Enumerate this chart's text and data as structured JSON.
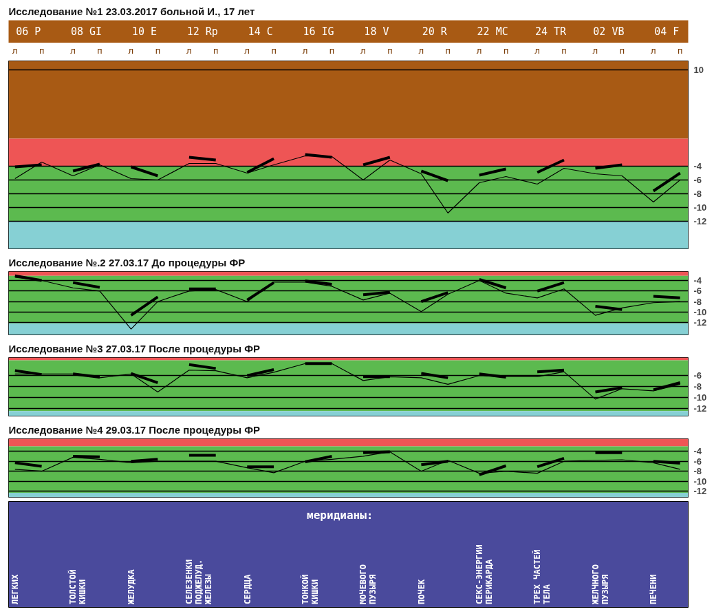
{
  "chart_data": [
    {
      "type": "line",
      "title": "Исследование №1 23.03.2017   больной И., 17 лет",
      "categories": [
        "л",
        "п",
        "л",
        "п",
        "л",
        "п",
        "л",
        "п",
        "л",
        "п",
        "л",
        "п",
        "л",
        "п",
        "л",
        "п",
        "л",
        "п",
        "л",
        "п",
        "л",
        "п",
        "л",
        "п"
      ],
      "annotations": [
        "06 P",
        "08 GI",
        "10 E",
        "12 Rp",
        "14 C",
        "16 IG",
        "18 V",
        "20 R",
        "22 MC",
        "24 TR",
        "02 VB",
        "04 F"
      ],
      "ylim": [
        -16,
        11.3
      ],
      "yticks": [
        10,
        -4,
        -6,
        -8,
        -10,
        -12
      ],
      "grid": "y",
      "bands": [
        {
          "axis": "y",
          "from": 0,
          "to": 11.3,
          "color": "#a85a14"
        },
        {
          "axis": "y",
          "from": -4,
          "to": 0,
          "color": "#ee5555"
        },
        {
          "axis": "y",
          "from": -12,
          "to": -4,
          "color": "#5cba4f"
        },
        {
          "axis": "y",
          "from": -16,
          "to": -12,
          "color": "#86d0d4"
        }
      ],
      "series": [
        {
          "color": "#000000",
          "values": [
            -5.8,
            -3.4,
            -5.4,
            -3.8,
            -5.8,
            -6.0,
            -3.6,
            -3.6,
            -5.0,
            -3.8,
            -2.5,
            -2.6,
            -6.0,
            -3.1,
            -5.1,
            -10.8,
            -6.4,
            -5.5,
            -6.6,
            -4.3,
            -5.1,
            -5.4,
            -9.2,
            -6.0
          ]
        },
        {
          "color": "#000000",
          "values": [
            -4.1,
            -3.8,
            null,
            null,
            null,
            null,
            null,
            null,
            null,
            null,
            null,
            null,
            null,
            null,
            null,
            null,
            null,
            null,
            null,
            null,
            null,
            null,
            null,
            null
          ]
        },
        {
          "color": "#000000",
          "values": [
            null,
            null,
            -4.7,
            -3.7,
            null,
            null,
            null,
            null,
            null,
            null,
            null,
            null,
            null,
            null,
            null,
            null,
            null,
            null,
            null,
            null,
            null,
            null,
            null,
            null
          ]
        },
        {
          "color": "#000000",
          "values": [
            null,
            null,
            null,
            null,
            -4.1,
            -5.4,
            null,
            null,
            null,
            null,
            null,
            null,
            null,
            null,
            null,
            null,
            null,
            null,
            null,
            null,
            null,
            null,
            null,
            null
          ]
        },
        {
          "color": "#000000",
          "values": [
            null,
            null,
            null,
            null,
            null,
            null,
            -2.7,
            -3.1,
            null,
            null,
            null,
            null,
            null,
            null,
            null,
            null,
            null,
            null,
            null,
            null,
            null,
            null,
            null,
            null
          ]
        },
        {
          "color": "#000000",
          "values": [
            null,
            null,
            null,
            null,
            null,
            null,
            null,
            null,
            -4.9,
            -2.9,
            null,
            null,
            null,
            null,
            null,
            null,
            null,
            null,
            null,
            null,
            null,
            null,
            null,
            null
          ]
        },
        {
          "color": "#000000",
          "values": [
            null,
            null,
            null,
            null,
            null,
            null,
            null,
            null,
            null,
            null,
            -2.3,
            -2.7,
            null,
            null,
            null,
            null,
            null,
            null,
            null,
            null,
            null,
            null,
            null,
            null
          ]
        },
        {
          "color": "#000000",
          "values": [
            null,
            null,
            null,
            null,
            null,
            null,
            null,
            null,
            null,
            null,
            null,
            null,
            -3.8,
            -2.7,
            null,
            null,
            null,
            null,
            null,
            null,
            null,
            null,
            null,
            null
          ]
        },
        {
          "color": "#000000",
          "values": [
            null,
            null,
            null,
            null,
            null,
            null,
            null,
            null,
            null,
            null,
            null,
            null,
            null,
            null,
            -4.7,
            -6.1,
            null,
            null,
            null,
            null,
            null,
            null,
            null,
            null
          ]
        },
        {
          "color": "#000000",
          "values": [
            null,
            null,
            null,
            null,
            null,
            null,
            null,
            null,
            null,
            null,
            null,
            null,
            null,
            null,
            null,
            null,
            -5.3,
            -4.4,
            null,
            null,
            null,
            null,
            null,
            null
          ]
        },
        {
          "color": "#000000",
          "values": [
            null,
            null,
            null,
            null,
            null,
            null,
            null,
            null,
            null,
            null,
            null,
            null,
            null,
            null,
            null,
            null,
            null,
            null,
            -4.9,
            -3.1,
            null,
            null,
            null,
            null
          ]
        },
        {
          "color": "#000000",
          "values": [
            null,
            null,
            null,
            null,
            null,
            null,
            null,
            null,
            null,
            null,
            null,
            null,
            null,
            null,
            null,
            null,
            null,
            null,
            null,
            null,
            -4.3,
            -3.8,
            null,
            null
          ]
        },
        {
          "color": "#000000",
          "values": [
            null,
            null,
            null,
            null,
            null,
            null,
            null,
            null,
            null,
            null,
            null,
            null,
            null,
            null,
            null,
            null,
            null,
            null,
            null,
            null,
            null,
            null,
            -7.6,
            -5.0
          ]
        }
      ]
    },
    {
      "type": "line",
      "title": "Исследование №.2 27.03.17    До процедуры ФР",
      "categories": [
        null,
        null,
        null,
        null,
        null,
        null,
        null,
        null,
        null,
        null,
        null,
        null,
        null,
        null,
        null,
        null,
        null,
        null,
        null,
        null,
        null,
        null,
        null,
        null
      ],
      "tick_labels": "y",
      "ylim": [
        -14.3,
        -2.3
      ],
      "yticks": [
        -4,
        -6,
        -8,
        -10,
        -12
      ],
      "grid": "y",
      "bands": [
        {
          "axis": "y",
          "from": -3.1,
          "to": -2.3,
          "color": "#ee5555"
        },
        {
          "axis": "y",
          "from": -12.1,
          "to": -3.1,
          "color": "#5cba4f"
        },
        {
          "axis": "y",
          "from": -14.3,
          "to": -12.1,
          "color": "#86d0d4"
        }
      ],
      "series": [
        {
          "color": "#000000",
          "values": [
            -3.4,
            -4.0,
            -5.4,
            -6.0,
            -13.2,
            -8.0,
            -6.0,
            -5.7,
            -8.0,
            -4.3,
            -4.3,
            -5.1,
            -7.7,
            -6.4,
            -9.9,
            -6.6,
            -4.0,
            -6.4,
            -7.3,
            -5.6,
            -10.6,
            -9.2,
            -8.2,
            -8.0
          ]
        },
        {
          "color": "#000000",
          "values": [
            -3.1,
            -4.0,
            null,
            null,
            null,
            null,
            null,
            null,
            null,
            null,
            null,
            null,
            null,
            null,
            null,
            null,
            null,
            null,
            null,
            null,
            null,
            null,
            null,
            null
          ]
        },
        {
          "color": "#000000",
          "values": [
            null,
            null,
            -4.4,
            -5.3,
            null,
            null,
            null,
            null,
            null,
            null,
            null,
            null,
            null,
            null,
            null,
            null,
            null,
            null,
            null,
            null,
            null,
            null,
            null,
            null
          ]
        },
        {
          "color": "#000000",
          "values": [
            null,
            null,
            null,
            null,
            -10.6,
            -7.1,
            null,
            null,
            null,
            null,
            null,
            null,
            null,
            null,
            null,
            null,
            null,
            null,
            null,
            null,
            null,
            null,
            null,
            null
          ]
        },
        {
          "color": "#000000",
          "values": [
            null,
            null,
            null,
            null,
            null,
            null,
            -5.6,
            -5.6,
            null,
            null,
            null,
            null,
            null,
            null,
            null,
            null,
            null,
            null,
            null,
            null,
            null,
            null,
            null,
            null
          ]
        },
        {
          "color": "#000000",
          "values": [
            null,
            null,
            null,
            null,
            null,
            null,
            null,
            null,
            -7.7,
            -4.4,
            null,
            null,
            null,
            null,
            null,
            null,
            null,
            null,
            null,
            null,
            null,
            null,
            null,
            null
          ]
        },
        {
          "color": "#000000",
          "values": [
            null,
            null,
            null,
            null,
            null,
            null,
            null,
            null,
            null,
            null,
            -4.1,
            -4.7,
            null,
            null,
            null,
            null,
            null,
            null,
            null,
            null,
            null,
            null,
            null,
            null
          ]
        },
        {
          "color": "#000000",
          "values": [
            null,
            null,
            null,
            null,
            null,
            null,
            null,
            null,
            null,
            null,
            null,
            null,
            -6.7,
            -6.2,
            null,
            null,
            null,
            null,
            null,
            null,
            null,
            null,
            null,
            null
          ]
        },
        {
          "color": "#000000",
          "values": [
            null,
            null,
            null,
            null,
            null,
            null,
            null,
            null,
            null,
            null,
            null,
            null,
            null,
            null,
            -8.0,
            -6.3,
            null,
            null,
            null,
            null,
            null,
            null,
            null,
            null
          ]
        },
        {
          "color": "#000000",
          "values": [
            null,
            null,
            null,
            null,
            null,
            null,
            null,
            null,
            null,
            null,
            null,
            null,
            null,
            null,
            null,
            null,
            -3.8,
            -5.4,
            null,
            null,
            null,
            null,
            null,
            null
          ]
        },
        {
          "color": "#000000",
          "values": [
            null,
            null,
            null,
            null,
            null,
            null,
            null,
            null,
            null,
            null,
            null,
            null,
            null,
            null,
            null,
            null,
            null,
            null,
            -6.0,
            -4.4,
            null,
            null,
            null,
            null
          ]
        },
        {
          "color": "#000000",
          "values": [
            null,
            null,
            null,
            null,
            null,
            null,
            null,
            null,
            null,
            null,
            null,
            null,
            null,
            null,
            null,
            null,
            null,
            null,
            null,
            null,
            -8.9,
            -9.5,
            null,
            null
          ]
        },
        {
          "color": "#000000",
          "values": [
            null,
            null,
            null,
            null,
            null,
            null,
            null,
            null,
            null,
            null,
            null,
            null,
            null,
            null,
            null,
            null,
            null,
            null,
            null,
            null,
            null,
            null,
            -7.0,
            -7.3
          ]
        }
      ]
    },
    {
      "type": "line",
      "title": "Исследование №3 27.03.17    После процедуры ФР",
      "categories": [
        null,
        null,
        null,
        null,
        null,
        null,
        null,
        null,
        null,
        null,
        null,
        null,
        null,
        null,
        null,
        null,
        null,
        null,
        null,
        null,
        null,
        null,
        null,
        null
      ],
      "tick_labels": "y",
      "ylim": [
        -13.4,
        -2.7
      ],
      "yticks": [
        -6,
        -8,
        -10,
        -12
      ],
      "grid": "y",
      "bands": [
        {
          "axis": "y",
          "from": -3.2,
          "to": -2.7,
          "color": "#ee5555"
        },
        {
          "axis": "y",
          "from": -12.5,
          "to": -3.2,
          "color": "#5cba4f"
        },
        {
          "axis": "y",
          "from": -13.4,
          "to": -12.5,
          "color": "#86d0d4"
        }
      ],
      "series": [
        {
          "color": "#000000",
          "values": [
            -5.7,
            -5.7,
            -5.7,
            -6.4,
            -5.7,
            -9.0,
            -5.0,
            -5.1,
            -6.4,
            -5.4,
            -3.8,
            -3.8,
            -6.9,
            -6.2,
            -6.4,
            -7.6,
            -6.0,
            -6.2,
            -6.2,
            -5.3,
            -10.3,
            -8.4,
            -8.8,
            -7.6
          ]
        },
        {
          "color": "#000000",
          "values": [
            -5.1,
            -5.8,
            null,
            null,
            null,
            null,
            null,
            null,
            null,
            null,
            null,
            null,
            null,
            null,
            null,
            null,
            null,
            null,
            null,
            null,
            null,
            null,
            null,
            null
          ]
        },
        {
          "color": "#000000",
          "values": [
            null,
            null,
            -5.7,
            -6.3,
            null,
            null,
            null,
            null,
            null,
            null,
            null,
            null,
            null,
            null,
            null,
            null,
            null,
            null,
            null,
            null,
            null,
            null,
            null,
            null
          ]
        },
        {
          "color": "#000000",
          "values": [
            null,
            null,
            null,
            null,
            -5.6,
            -7.3,
            null,
            null,
            null,
            null,
            null,
            null,
            null,
            null,
            null,
            null,
            null,
            null,
            null,
            null,
            null,
            null,
            null,
            null
          ]
        },
        {
          "color": "#000000",
          "values": [
            null,
            null,
            null,
            null,
            null,
            null,
            -4.0,
            -4.7,
            null,
            null,
            null,
            null,
            null,
            null,
            null,
            null,
            null,
            null,
            null,
            null,
            null,
            null,
            null,
            null
          ]
        },
        {
          "color": "#000000",
          "values": [
            null,
            null,
            null,
            null,
            null,
            null,
            null,
            null,
            -6.0,
            -4.9,
            null,
            null,
            null,
            null,
            null,
            null,
            null,
            null,
            null,
            null,
            null,
            null,
            null,
            null
          ]
        },
        {
          "color": "#000000",
          "values": [
            null,
            null,
            null,
            null,
            null,
            null,
            null,
            null,
            null,
            null,
            -3.8,
            -3.8,
            null,
            null,
            null,
            null,
            null,
            null,
            null,
            null,
            null,
            null,
            null,
            null
          ]
        },
        {
          "color": "#000000",
          "values": [
            null,
            null,
            null,
            null,
            null,
            null,
            null,
            null,
            null,
            null,
            null,
            null,
            -6.2,
            -6.2,
            null,
            null,
            null,
            null,
            null,
            null,
            null,
            null,
            null,
            null
          ]
        },
        {
          "color": "#000000",
          "values": [
            null,
            null,
            null,
            null,
            null,
            null,
            null,
            null,
            null,
            null,
            null,
            null,
            null,
            null,
            -5.6,
            -6.4,
            null,
            null,
            null,
            null,
            null,
            null,
            null,
            null
          ]
        },
        {
          "color": "#000000",
          "values": [
            null,
            null,
            null,
            null,
            null,
            null,
            null,
            null,
            null,
            null,
            null,
            null,
            null,
            null,
            null,
            null,
            -5.7,
            -6.3,
            null,
            null,
            null,
            null,
            null,
            null
          ]
        },
        {
          "color": "#000000",
          "values": [
            null,
            null,
            null,
            null,
            null,
            null,
            null,
            null,
            null,
            null,
            null,
            null,
            null,
            null,
            null,
            null,
            null,
            null,
            -5.3,
            -5.0,
            null,
            null,
            null,
            null
          ]
        },
        {
          "color": "#000000",
          "values": [
            null,
            null,
            null,
            null,
            null,
            null,
            null,
            null,
            null,
            null,
            null,
            null,
            null,
            null,
            null,
            null,
            null,
            null,
            null,
            null,
            -9.0,
            -8.2,
            null,
            null
          ]
        },
        {
          "color": "#000000",
          "values": [
            null,
            null,
            null,
            null,
            null,
            null,
            null,
            null,
            null,
            null,
            null,
            null,
            null,
            null,
            null,
            null,
            null,
            null,
            null,
            null,
            null,
            null,
            -8.6,
            -7.3
          ]
        }
      ]
    },
    {
      "type": "line",
      "title": "Исследование №4 29.03.17    После процедуры ФР",
      "categories": [
        null,
        null,
        null,
        null,
        null,
        null,
        null,
        null,
        null,
        null,
        null,
        null,
        null,
        null,
        null,
        null,
        null,
        null,
        null,
        null,
        null,
        null,
        null,
        null
      ],
      "tick_labels": "y",
      "ylim": [
        -13.2,
        -1.5
      ],
      "yticks": [
        -4,
        -6,
        -8,
        -10,
        -12
      ],
      "grid": "y",
      "bands": [
        {
          "axis": "y",
          "from": -3.0,
          "to": -1.5,
          "color": "#ee5555"
        },
        {
          "axis": "y",
          "from": -12.3,
          "to": -3.0,
          "color": "#5cba4f"
        },
        {
          "axis": "y",
          "from": -13.2,
          "to": -12.3,
          "color": "#86d0d4"
        }
      ],
      "series": [
        {
          "color": "#000000",
          "values": [
            -7.6,
            -8.0,
            -5.2,
            -5.6,
            -6.3,
            -6.0,
            -6.0,
            -6.0,
            -7.3,
            -8.3,
            -6.0,
            -5.6,
            -5.0,
            -4.1,
            -8.0,
            -5.8,
            -8.4,
            -8.0,
            -8.4,
            -6.0,
            -5.8,
            -5.7,
            -6.3,
            -7.6
          ]
        },
        {
          "color": "#000000",
          "values": [
            -6.3,
            -7.0,
            null,
            null,
            null,
            null,
            null,
            null,
            null,
            null,
            null,
            null,
            null,
            null,
            null,
            null,
            null,
            null,
            null,
            null,
            null,
            null,
            null,
            null
          ]
        },
        {
          "color": "#000000",
          "values": [
            null,
            null,
            -5.0,
            -5.1,
            null,
            null,
            null,
            null,
            null,
            null,
            null,
            null,
            null,
            null,
            null,
            null,
            null,
            null,
            null,
            null,
            null,
            null,
            null,
            null
          ]
        },
        {
          "color": "#000000",
          "values": [
            null,
            null,
            null,
            null,
            -6.0,
            -5.6,
            null,
            null,
            null,
            null,
            null,
            null,
            null,
            null,
            null,
            null,
            null,
            null,
            null,
            null,
            null,
            null,
            null,
            null
          ]
        },
        {
          "color": "#000000",
          "values": [
            null,
            null,
            null,
            null,
            null,
            null,
            -4.8,
            -4.8,
            null,
            null,
            null,
            null,
            null,
            null,
            null,
            null,
            null,
            null,
            null,
            null,
            null,
            null,
            null,
            null
          ]
        },
        {
          "color": "#000000",
          "values": [
            null,
            null,
            null,
            null,
            null,
            null,
            null,
            null,
            -7.1,
            -7.1,
            null,
            null,
            null,
            null,
            null,
            null,
            null,
            null,
            null,
            null,
            null,
            null,
            null,
            null
          ]
        },
        {
          "color": "#000000",
          "values": [
            null,
            null,
            null,
            null,
            null,
            null,
            null,
            null,
            null,
            null,
            -6.1,
            -5.0,
            null,
            null,
            null,
            null,
            null,
            null,
            null,
            null,
            null,
            null,
            null,
            null
          ]
        },
        {
          "color": "#000000",
          "values": [
            null,
            null,
            null,
            null,
            null,
            null,
            null,
            null,
            null,
            null,
            null,
            null,
            -4.3,
            -4.1,
            null,
            null,
            null,
            null,
            null,
            null,
            null,
            null,
            null,
            null
          ]
        },
        {
          "color": "#000000",
          "values": [
            null,
            null,
            null,
            null,
            null,
            null,
            null,
            null,
            null,
            null,
            null,
            null,
            null,
            null,
            -6.7,
            -6.0,
            null,
            null,
            null,
            null,
            null,
            null,
            null,
            null
          ]
        },
        {
          "color": "#000000",
          "values": [
            null,
            null,
            null,
            null,
            null,
            null,
            null,
            null,
            null,
            null,
            null,
            null,
            null,
            null,
            null,
            null,
            -8.7,
            -6.9,
            null,
            null,
            null,
            null,
            null,
            null
          ]
        },
        {
          "color": "#000000",
          "values": [
            null,
            null,
            null,
            null,
            null,
            null,
            null,
            null,
            null,
            null,
            null,
            null,
            null,
            null,
            null,
            null,
            null,
            null,
            -7.1,
            -5.4,
            null,
            null,
            null,
            null
          ]
        },
        {
          "color": "#000000",
          "values": [
            null,
            null,
            null,
            null,
            null,
            null,
            null,
            null,
            null,
            null,
            null,
            null,
            null,
            null,
            null,
            null,
            null,
            null,
            null,
            null,
            -4.3,
            -4.3,
            null,
            null
          ]
        },
        {
          "color": "#000000",
          "values": [
            null,
            null,
            null,
            null,
            null,
            null,
            null,
            null,
            null,
            null,
            null,
            null,
            null,
            null,
            null,
            null,
            null,
            null,
            null,
            null,
            null,
            null,
            -6.0,
            -6.4
          ]
        }
      ],
      "annotations": [
        "меридианы:",
        "ЛЕГКИХ",
        "ТОЛСТОЙ\nКИШКИ",
        "ЖЕЛУДКА",
        "СЕЛЕЗЕНКИ\nПОДЖЕЛУД.\nЖЕЛЕЗЫ",
        "СЕРДЦА",
        "ТОНКОЙ\nКИШКИ",
        "МОЧЕВОГО\nПУЗЫРЯ",
        "ПОЧЕК",
        "СЕКС-ЭНЕРГИИ\nПЕРИКАРДА",
        "ТРЕХ ЧАСТЕЙ\nТЕЛА",
        "ЖЕЛЧНОГО\nПУЗЫРЯ",
        "ПЕЧЕНИ"
      ]
    }
  ]
}
